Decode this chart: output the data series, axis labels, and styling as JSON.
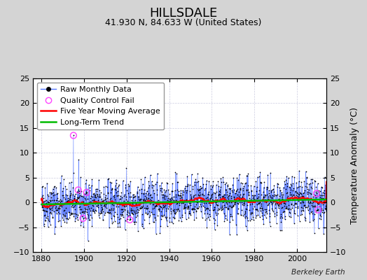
{
  "title": "HILLSDALE",
  "subtitle": "41.930 N, 84.633 W (United States)",
  "ylabel": "Temperature Anomaly (°C)",
  "watermark": "Berkeley Earth",
  "xlim": [
    1876,
    2014
  ],
  "ylim": [
    -10,
    25
  ],
  "yticks": [
    -10,
    -5,
    0,
    5,
    10,
    15,
    20,
    25
  ],
  "xticks": [
    1880,
    1900,
    1920,
    1940,
    1960,
    1980,
    2000
  ],
  "bg_color": "#d4d4d4",
  "plot_bg_color": "#ffffff",
  "raw_line_color": "#5577ff",
  "raw_dot_color": "#000000",
  "qc_fail_color": "#ff44ff",
  "moving_avg_color": "#ff0000",
  "trend_color": "#00bb00",
  "title_fontsize": 13,
  "subtitle_fontsize": 9,
  "ylabel_fontsize": 9,
  "legend_fontsize": 8,
  "tick_fontsize": 8,
  "seed": 42,
  "n_years_raw": 134,
  "start_year": 1880,
  "noise_std": 2.3,
  "outlier_year": 1895,
  "outlier_val": 13.5,
  "qc_years": [
    1895,
    1897.3,
    1899.5,
    1901.2,
    1921.5,
    2009.25,
    2010.08
  ],
  "qc_vals": [
    13.5,
    2.5,
    -3.2,
    2.0,
    -3.5,
    1.8,
    -1.5
  ]
}
